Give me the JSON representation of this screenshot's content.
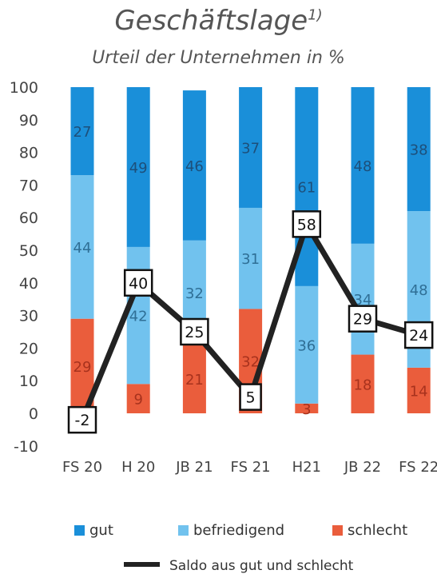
{
  "chart_data": {
    "type": "bar",
    "stacked": true,
    "title": "Geschäftslage",
    "title_footnote": "1)",
    "subtitle": "Urteil der Unternehmen in %",
    "categories": [
      "FS 20",
      "H 20",
      "JB 21",
      "FS 21",
      "H21",
      "JB 22",
      "FS 22"
    ],
    "series": [
      {
        "name": "schlecht",
        "color": "#ea5d3c",
        "values": [
          29,
          9,
          21,
          32,
          3,
          18,
          14
        ]
      },
      {
        "name": "befriedigend",
        "color": "#71c2ee",
        "values": [
          44,
          42,
          32,
          31,
          36,
          34,
          48
        ]
      },
      {
        "name": "gut",
        "color": "#1a8fd9",
        "values": [
          27,
          49,
          46,
          37,
          61,
          48,
          38
        ]
      }
    ],
    "line_series": {
      "name": "Saldo aus gut und schlecht",
      "color": "#222222",
      "values": [
        -2,
        40,
        25,
        5,
        58,
        29,
        24
      ]
    },
    "ylim": [
      -10,
      100
    ],
    "yticks": [
      -10,
      0,
      10,
      20,
      30,
      40,
      50,
      60,
      70,
      80,
      90,
      100
    ],
    "grid": false,
    "legend_position": "bottom",
    "legend_order": [
      "gut",
      "befriedigend",
      "schlecht"
    ]
  }
}
